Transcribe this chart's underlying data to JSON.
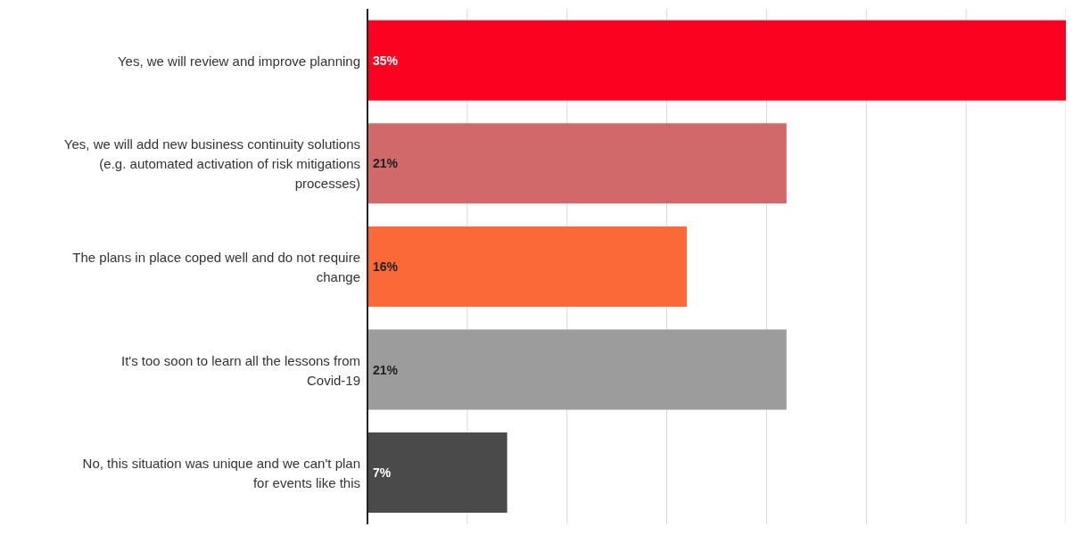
{
  "chart_data": {
    "type": "bar",
    "orientation": "horizontal",
    "categories": [
      "Yes, we will review and improve planning",
      "Yes, we will add new business continuity solutions (e.g. automated activation of risk mitigations processes)",
      "The plans in place coped well and do not require change",
      "It's too soon to learn all the lessons from Covid-19",
      "No, this situation was unique and we can't plan for events like this"
    ],
    "values": [
      35,
      21,
      16,
      21,
      7
    ],
    "colors": [
      "#fa0320",
      "#d1696b",
      "#fa6a38",
      "#9c9c9c",
      "#4a4a4a"
    ],
    "value_labels": [
      "35%",
      "21%",
      "16%",
      "21%",
      "7%"
    ],
    "xlim": [
      0,
      35
    ],
    "xticks": [
      {
        "value": 0,
        "label": null
      },
      {
        "value": 5,
        "label": null
      },
      {
        "value": 10,
        "label": null
      },
      {
        "value": 15,
        "label": null
      },
      {
        "value": 20,
        "label": null
      },
      {
        "value": 25,
        "label": null
      },
      {
        "value": 30,
        "label": null
      },
      {
        "value": 35,
        "label": null
      }
    ],
    "grid": "x",
    "tick_labels": "y"
  }
}
